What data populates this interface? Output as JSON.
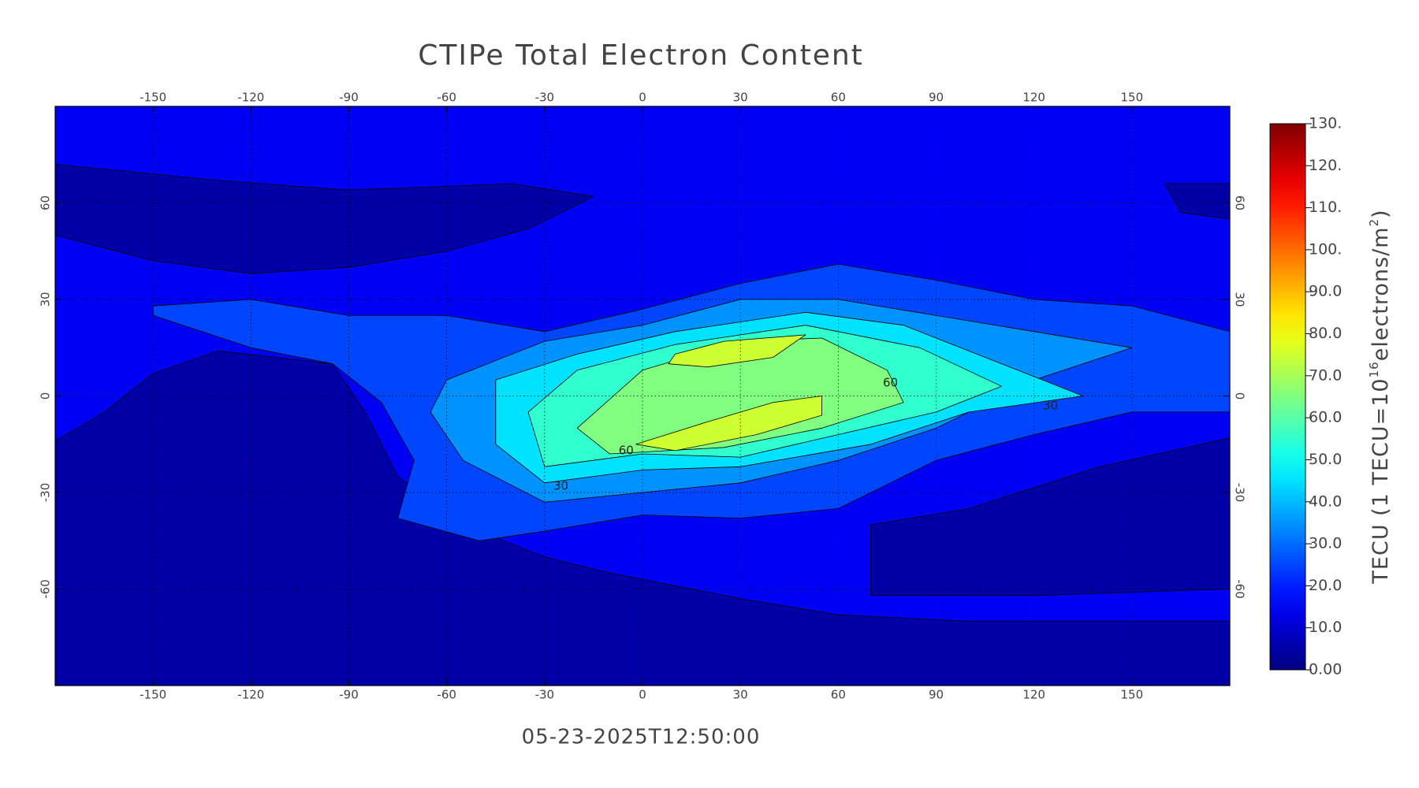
{
  "chart_data": {
    "type": "contour_map",
    "title": "CTIPe Total Electron Content",
    "timestamp": "05-23-2025T12:50:00",
    "xlim": [
      -180,
      180
    ],
    "xticks": [
      -150,
      -120,
      -90,
      -60,
      -30,
      0,
      30,
      60,
      90,
      120,
      150
    ],
    "ylim": [
      -90,
      90
    ],
    "yticks": [
      -60,
      -30,
      0,
      30,
      60
    ],
    "grid": true,
    "colormap": "jet",
    "clim": [
      0,
      130
    ],
    "cticks": [
      {
        "value": 0,
        "label": "0.00"
      },
      {
        "value": 10,
        "label": "10.0"
      },
      {
        "value": 20,
        "label": "20.0"
      },
      {
        "value": 30,
        "label": "30.0"
      },
      {
        "value": 40,
        "label": "40.0"
      },
      {
        "value": 50,
        "label": "50.0"
      },
      {
        "value": 60,
        "label": "60.0"
      },
      {
        "value": 70,
        "label": "70.0"
      },
      {
        "value": 80,
        "label": "80.0"
      },
      {
        "value": 90,
        "label": "90.0"
      },
      {
        "value": 100,
        "label": "100."
      },
      {
        "value": 110,
        "label": "110."
      },
      {
        "value": 120,
        "label": "120."
      },
      {
        "value": 130,
        "label": "130."
      }
    ],
    "colorbar_title": [
      "TECU (1 TECU=10",
      "16",
      "electrons/m",
      "2",
      ")"
    ],
    "contour_levels": [
      0,
      10,
      20,
      30,
      40,
      50,
      60,
      70
    ],
    "contour_labels": [
      {
        "value": 60,
        "lon": -5,
        "lat": -17
      },
      {
        "value": 30,
        "lon": -25,
        "lat": -28
      },
      {
        "value": 60,
        "lon": 76,
        "lat": 4
      },
      {
        "value": 30,
        "lon": 125,
        "lat": -3
      }
    ]
  }
}
